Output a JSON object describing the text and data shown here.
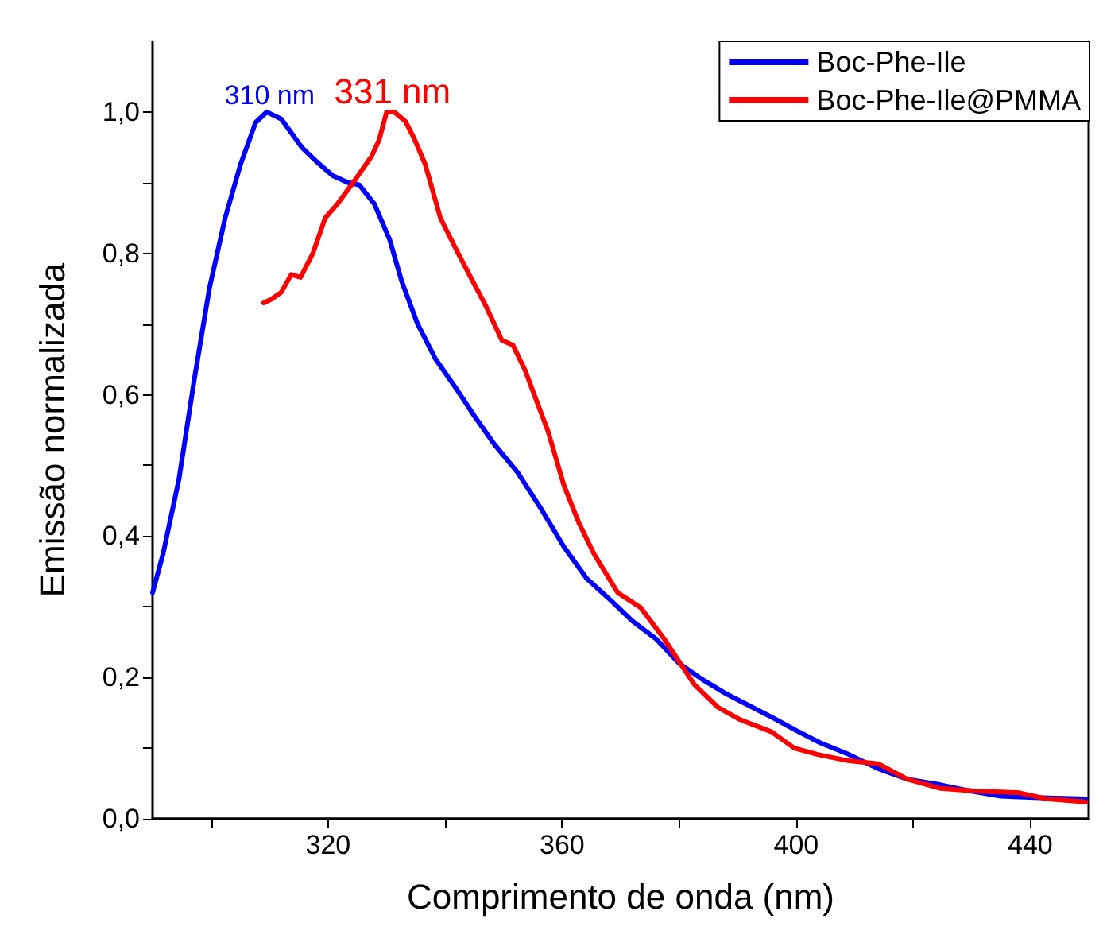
{
  "chart_data": {
    "type": "line",
    "xlabel": "Comprimento de onda (nm)",
    "ylabel": "Emissão normalizada",
    "xlim": [
      290,
      450
    ],
    "ylim": [
      0,
      1.1
    ],
    "xticks": [
      {
        "value": 300,
        "label": null
      },
      320,
      {
        "value": 340,
        "label": null
      },
      360,
      {
        "value": 380,
        "label": null
      },
      400,
      {
        "value": 420,
        "label": null
      },
      440
    ],
    "yticks": [
      {
        "value": 0,
        "label": "0,0"
      },
      {
        "value": 0.1,
        "label": null
      },
      {
        "value": 0.2,
        "label": "0,2"
      },
      {
        "value": 0.3,
        "label": null
      },
      {
        "value": 0.4,
        "label": "0,4"
      },
      {
        "value": 0.5,
        "label": null
      },
      {
        "value": 0.6,
        "label": "0,6"
      },
      {
        "value": 0.7,
        "label": null
      },
      {
        "value": 0.8,
        "label": "0,8"
      },
      {
        "value": 0.9,
        "label": null
      },
      {
        "value": 1.0,
        "label": "1,0"
      }
    ],
    "grid": false,
    "legend": "top right",
    "marker": "none",
    "line_style": "solid",
    "annotations": [
      {
        "text": "310 nm",
        "x": 310,
        "y": 1.0
      },
      {
        "text": "331 nm",
        "x": 331,
        "y": 1.0
      }
    ],
    "series": [
      {
        "name": "Boc-Phe-Ile",
        "color": "#0000ff",
        "x": [
          290,
          291.8,
          294.5,
          297.1,
          299.7,
          302.4,
          305,
          307.6,
          309.5,
          312,
          315.5,
          318,
          320.8,
          323.4,
          325.3,
          327.9,
          330.5,
          332.6,
          335.3,
          338.4,
          341.8,
          345,
          348.4,
          352.4,
          356.3,
          360.3,
          364.2,
          368.2,
          372,
          376,
          380,
          384,
          388,
          392,
          396,
          400,
          404,
          409,
          414,
          419,
          424.7,
          430,
          435,
          440.8,
          449.5
        ],
        "values": [
          0.32,
          0.375,
          0.48,
          0.62,
          0.75,
          0.85,
          0.925,
          0.985,
          1.0,
          0.99,
          0.95,
          0.93,
          0.91,
          0.9,
          0.897,
          0.87,
          0.82,
          0.76,
          0.7,
          0.65,
          0.61,
          0.57,
          0.53,
          0.49,
          0.44,
          0.385,
          0.34,
          0.31,
          0.28,
          0.255,
          0.22,
          0.197,
          0.177,
          0.16,
          0.143,
          0.125,
          0.108,
          0.091,
          0.071,
          0.056,
          0.048,
          0.039,
          0.032,
          0.03,
          0.028
        ]
      },
      {
        "name": "Boc-Phe-Ile@PMMA",
        "color": "#ff0000",
        "x": [
          309,
          310.3,
          312,
          313.7,
          315.3,
          317.4,
          319.5,
          321.6,
          324.7,
          327.4,
          328.7,
          330,
          331.3,
          333.2,
          334.7,
          336.6,
          339.2,
          341.8,
          344.5,
          347,
          349.7,
          351.6,
          353.7,
          357.6,
          360.3,
          362.9,
          365.5,
          369.5,
          373.4,
          377.4,
          382.6,
          386.6,
          390.5,
          395.8,
          399.7,
          403.7,
          409,
          414,
          419,
          424.7,
          431,
          438,
          443,
          449.5
        ],
        "values": [
          0.73,
          0.735,
          0.745,
          0.77,
          0.766,
          0.8,
          0.85,
          0.87,
          0.905,
          0.937,
          0.96,
          1.0,
          1.0,
          0.987,
          0.963,
          0.926,
          0.85,
          0.807,
          0.764,
          0.725,
          0.677,
          0.67,
          0.634,
          0.548,
          0.472,
          0.418,
          0.374,
          0.32,
          0.299,
          0.255,
          0.19,
          0.158,
          0.14,
          0.123,
          0.1,
          0.091,
          0.082,
          0.078,
          0.056,
          0.043,
          0.039,
          0.037,
          0.028,
          0.024
        ]
      }
    ]
  }
}
